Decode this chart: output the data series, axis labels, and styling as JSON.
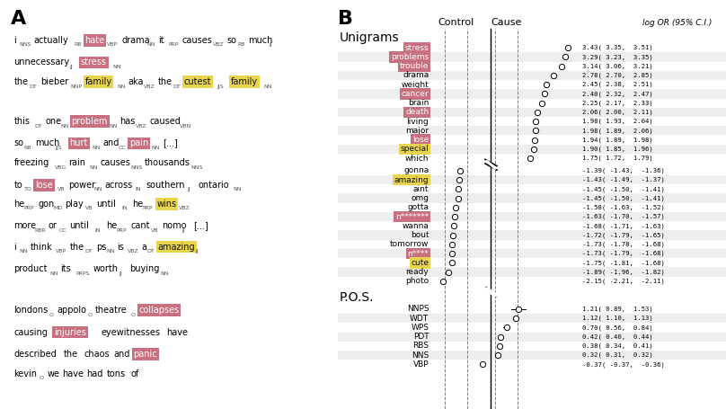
{
  "panel_A_label": "A",
  "panel_B_label": "B",
  "unigrams_label": "Unigrams",
  "pos_label": "P.O.S.",
  "control_label": "Control",
  "cause_label": "Cause",
  "log_or_label": "log OR (95% C.I.)",
  "pink_color": "#c97080",
  "yellow_color": "#e8d44d",
  "unigrams_positive": [
    {
      "word": "stress",
      "log_or": 3.43,
      "ci_lo": 3.35,
      "ci_hi": 3.51,
      "highlight": "pink"
    },
    {
      "word": "problems",
      "log_or": 3.29,
      "ci_lo": 3.23,
      "ci_hi": 3.35,
      "highlight": "pink"
    },
    {
      "word": "trouble",
      "log_or": 3.14,
      "ci_lo": 3.06,
      "ci_hi": 3.21,
      "highlight": "pink"
    },
    {
      "word": "drama",
      "log_or": 2.78,
      "ci_lo": 2.7,
      "ci_hi": 2.85,
      "highlight": "none"
    },
    {
      "word": "weight",
      "log_or": 2.45,
      "ci_lo": 2.38,
      "ci_hi": 2.51,
      "highlight": "none"
    },
    {
      "word": "cancer",
      "log_or": 2.4,
      "ci_lo": 2.32,
      "ci_hi": 2.47,
      "highlight": "pink"
    },
    {
      "word": "brain",
      "log_or": 2.25,
      "ci_lo": 2.17,
      "ci_hi": 2.33,
      "highlight": "none"
    },
    {
      "word": "death",
      "log_or": 2.06,
      "ci_lo": 2.0,
      "ci_hi": 2.11,
      "highlight": "pink"
    },
    {
      "word": "living",
      "log_or": 1.98,
      "ci_lo": 1.93,
      "ci_hi": 2.04,
      "highlight": "none"
    },
    {
      "word": "major",
      "log_or": 1.98,
      "ci_lo": 1.89,
      "ci_hi": 2.06,
      "highlight": "none"
    },
    {
      "word": "lose",
      "log_or": 1.94,
      "ci_lo": 1.89,
      "ci_hi": 1.98,
      "highlight": "pink"
    },
    {
      "word": "special",
      "log_or": 1.9,
      "ci_lo": 1.85,
      "ci_hi": 1.96,
      "highlight": "yellow"
    },
    {
      "word": "which",
      "log_or": 1.75,
      "ci_lo": 1.72,
      "ci_hi": 1.79,
      "highlight": "none"
    }
  ],
  "unigrams_negative": [
    {
      "word": "gonna",
      "log_or": -1.39,
      "ci_lo": -1.43,
      "ci_hi": -1.36,
      "highlight": "none"
    },
    {
      "word": "amazing",
      "log_or": -1.43,
      "ci_lo": -1.49,
      "ci_hi": -1.37,
      "highlight": "yellow"
    },
    {
      "word": "aint",
      "log_or": -1.45,
      "ci_lo": -1.5,
      "ci_hi": -1.41,
      "highlight": "none"
    },
    {
      "word": "omg",
      "log_or": -1.45,
      "ci_lo": -1.5,
      "ci_hi": -1.41,
      "highlight": "none"
    },
    {
      "word": "gotta",
      "log_or": -1.58,
      "ci_lo": -1.63,
      "ci_hi": -1.52,
      "highlight": "none"
    },
    {
      "word": "n*******",
      "log_or": -1.63,
      "ci_lo": -1.7,
      "ci_hi": -1.57,
      "highlight": "pink"
    },
    {
      "word": "wanna",
      "log_or": -1.68,
      "ci_lo": -1.71,
      "ci_hi": -1.63,
      "highlight": "none"
    },
    {
      "word": "bout",
      "log_or": -1.72,
      "ci_lo": -1.79,
      "ci_hi": -1.65,
      "highlight": "none"
    },
    {
      "word": "tomorrow",
      "log_or": -1.73,
      "ci_lo": -1.78,
      "ci_hi": -1.68,
      "highlight": "none"
    },
    {
      "word": "n****",
      "log_or": -1.73,
      "ci_lo": -1.79,
      "ci_hi": -1.68,
      "highlight": "pink"
    },
    {
      "word": "cute",
      "log_or": -1.75,
      "ci_lo": -1.81,
      "ci_hi": -1.68,
      "highlight": "yellow"
    },
    {
      "word": "ready",
      "log_or": -1.89,
      "ci_lo": -1.96,
      "ci_hi": -1.82,
      "highlight": "none"
    },
    {
      "word": "photo",
      "log_or": -2.15,
      "ci_lo": -2.21,
      "ci_hi": -2.11,
      "highlight": "none"
    }
  ],
  "pos_items": [
    {
      "word": "NNPS",
      "log_or": 1.21,
      "ci_lo": 0.89,
      "ci_hi": 1.53,
      "highlight": "none"
    },
    {
      "word": "WDT",
      "log_or": 1.12,
      "ci_lo": 1.1,
      "ci_hi": 1.13,
      "highlight": "none"
    },
    {
      "word": "WPS",
      "log_or": 0.7,
      "ci_lo": 0.56,
      "ci_hi": 0.84,
      "highlight": "none"
    },
    {
      "word": "PDT",
      "log_or": 0.42,
      "ci_lo": 0.4,
      "ci_hi": 0.44,
      "highlight": "none"
    },
    {
      "word": "RBS",
      "log_or": 0.38,
      "ci_lo": 0.34,
      "ci_hi": 0.41,
      "highlight": "none"
    },
    {
      "word": "NNS",
      "log_or": 0.32,
      "ci_lo": 0.31,
      "ci_hi": 0.32,
      "highlight": "none"
    },
    {
      "word": "VBP",
      "log_or": -0.37,
      "ci_lo": -0.37,
      "ci_hi": -0.36,
      "highlight": "none"
    }
  ],
  "panel_A_sentences": [
    {
      "lines": [
        [
          {
            "word": "i",
            "tag": "NNS",
            "hl": "none"
          },
          {
            "word": "actually",
            "tag": "RB",
            "hl": "none"
          },
          {
            "word": "hate",
            "tag": "VBP",
            "hl": "pink"
          },
          {
            "word": "drama",
            "tag": "NN",
            "hl": "none"
          },
          {
            "word": "it",
            "tag": "PRP",
            "hl": "none"
          },
          {
            "word": "causes",
            "tag": "VBZ",
            "hl": "none"
          },
          {
            "word": "so",
            "tag": "RB",
            "hl": "none"
          },
          {
            "word": "much",
            "tag": "JJ",
            "hl": "none"
          }
        ],
        [
          {
            "word": "unnecessary",
            "tag": "JJ",
            "hl": "none"
          },
          {
            "word": "stress",
            "tag": "NN",
            "hl": "pink"
          }
        ]
      ]
    },
    {
      "lines": [
        [
          {
            "word": "the",
            "tag": "DT",
            "hl": "none"
          },
          {
            "word": "bieber",
            "tag": "NNP",
            "hl": "none"
          },
          {
            "word": "family",
            "tag": "NN",
            "hl": "yellow"
          },
          {
            "word": "aka",
            "tag": "VBZ",
            "hl": "none"
          },
          {
            "word": "the",
            "tag": "DT",
            "hl": "none"
          },
          {
            "word": "cutest",
            "tag": "JJS",
            "hl": "yellow"
          },
          {
            "word": "family",
            "tag": "NN",
            "hl": "yellow"
          }
        ]
      ]
    },
    {
      "lines": [
        [
          {
            "word": "this",
            "tag": "DT",
            "hl": "none"
          },
          {
            "word": "one",
            "tag": "NN",
            "hl": "none"
          },
          {
            "word": "problem",
            "tag": "NN",
            "hl": "pink"
          },
          {
            "word": "has",
            "tag": "VBZ",
            "hl": "none"
          },
          {
            "word": "caused",
            "tag": "VBN",
            "hl": "none"
          }
        ],
        [
          {
            "word": "so",
            "tag": "RB",
            "hl": "none"
          },
          {
            "word": "much",
            "tag": "JJS",
            "hl": "none"
          },
          {
            "word": "hurt",
            "tag": "NN",
            "hl": "pink"
          },
          {
            "word": "and",
            "tag": "CC",
            "hl": "none"
          },
          {
            "word": "pain",
            "tag": "NN",
            "hl": "pink"
          },
          {
            "word": "[...]",
            "tag": "",
            "hl": "none"
          }
        ]
      ]
    },
    {
      "lines": [
        [
          {
            "word": "freezing",
            "tag": "VBG",
            "hl": "none"
          },
          {
            "word": "rain",
            "tag": "NN",
            "hl": "none"
          },
          {
            "word": "causes",
            "tag": "NNS",
            "hl": "none"
          },
          {
            "word": "thousands",
            "tag": "NNS",
            "hl": "none"
          }
        ],
        [
          {
            "word": "to",
            "tag": "TO",
            "hl": "none"
          },
          {
            "word": "lose",
            "tag": "VB",
            "hl": "pink"
          },
          {
            "word": "power",
            "tag": "NN",
            "hl": "none"
          },
          {
            "word": "across",
            "tag": "IN",
            "hl": "none"
          },
          {
            "word": "southern",
            "tag": "JJ",
            "hl": "none"
          },
          {
            "word": "ontario",
            "tag": "NN",
            "hl": "none"
          }
        ]
      ]
    },
    {
      "lines": [
        [
          {
            "word": "he",
            "tag": "PRP",
            "hl": "none"
          },
          {
            "word": "gon",
            "tag": "MD",
            "hl": "none"
          },
          {
            "word": "play",
            "tag": "VB",
            "hl": "none"
          },
          {
            "word": "until",
            "tag": "IN",
            "hl": "none"
          },
          {
            "word": "he",
            "tag": "PRP",
            "hl": "none"
          },
          {
            "word": "wins",
            "tag": "VBZ",
            "hl": "yellow"
          }
        ],
        [
          {
            "word": "more",
            "tag": "RBR",
            "hl": "none"
          },
          {
            "word": "or",
            "tag": "CC",
            "hl": "none"
          },
          {
            "word": "until",
            "tag": "IN",
            "hl": "none"
          },
          {
            "word": "he",
            "tag": "PRP",
            "hl": "none"
          },
          {
            "word": "cant",
            "tag": "VB",
            "hl": "none"
          },
          {
            "word": "nomo",
            "tag": "JJ",
            "hl": "none"
          },
          {
            "word": "[...]",
            "tag": "",
            "hl": "none"
          }
        ]
      ]
    },
    {
      "lines": [
        [
          {
            "word": "i",
            "tag": "NN",
            "hl": "none"
          },
          {
            "word": "think",
            "tag": "VBP",
            "hl": "none"
          },
          {
            "word": "the",
            "tag": "DT",
            "hl": "none"
          },
          {
            "word": "ps",
            "tag": "NN",
            "hl": "none"
          },
          {
            "word": "is",
            "tag": "VBZ",
            "hl": "none"
          },
          {
            "word": "a",
            "tag": "DT",
            "hl": "none"
          },
          {
            "word": "amazing",
            "tag": "JJ",
            "hl": "yellow"
          }
        ],
        [
          {
            "word": "product",
            "tag": "NN",
            "hl": "none"
          },
          {
            "word": "its",
            "tag": "PRPS",
            "hl": "none"
          },
          {
            "word": "worth",
            "tag": "JJ",
            "hl": "none"
          },
          {
            "word": "buying",
            "tag": "NN",
            "hl": "none"
          }
        ]
      ]
    },
    {
      "lines": [
        [
          {
            "word": "londons",
            "tag": "O",
            "hl": "none"
          },
          {
            "word": "appolo",
            "tag": "O",
            "hl": "none"
          },
          {
            "word": "theatre",
            "tag": "O",
            "hl": "none"
          },
          {
            "word": "collapses",
            "tag": "",
            "hl": "pink"
          }
        ],
        [
          {
            "word": "causing",
            "tag": "",
            "hl": "none"
          },
          {
            "word": "injuries",
            "tag": "",
            "hl": "pink"
          },
          {
            "word": "eyewitnesses",
            "tag": "",
            "hl": "none"
          },
          {
            "word": "have",
            "tag": "",
            "hl": "none"
          }
        ],
        [
          {
            "word": "described",
            "tag": "",
            "hl": "none"
          },
          {
            "word": "the",
            "tag": "",
            "hl": "none"
          },
          {
            "word": "chaos",
            "tag": "",
            "hl": "none"
          },
          {
            "word": "and",
            "tag": "",
            "hl": "none"
          },
          {
            "word": "panic",
            "tag": "",
            "hl": "pink"
          }
        ]
      ]
    },
    {
      "lines": [
        [
          {
            "word": "kevin",
            "tag": "O",
            "hl": "none"
          },
          {
            "word": "we",
            "tag": "",
            "hl": "none"
          },
          {
            "word": "have",
            "tag": "",
            "hl": "none"
          },
          {
            "word": "had",
            "tag": "",
            "hl": "none"
          },
          {
            "word": "tons",
            "tag": "",
            "hl": "none"
          },
          {
            "word": "of",
            "tag": "",
            "hl": "none"
          }
        ]
      ]
    }
  ]
}
